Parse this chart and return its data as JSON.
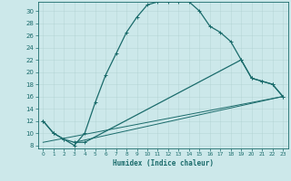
{
  "xlabel": "Humidex (Indice chaleur)",
  "bg_color": "#cce8ea",
  "grid_color": "#aacccc",
  "line_color": "#1a6b6b",
  "xlim": [
    -0.5,
    23.5
  ],
  "ylim": [
    7.5,
    31.5
  ],
  "xticks": [
    0,
    1,
    2,
    3,
    4,
    5,
    6,
    7,
    8,
    9,
    10,
    11,
    12,
    13,
    14,
    15,
    16,
    17,
    18,
    19,
    20,
    21,
    22,
    23
  ],
  "yticks": [
    8,
    10,
    12,
    14,
    16,
    18,
    20,
    22,
    24,
    26,
    28,
    30
  ],
  "series1_x": [
    0,
    1,
    2,
    3,
    4,
    5,
    6,
    7,
    8,
    9,
    10,
    11,
    12,
    13,
    14,
    15,
    16,
    17,
    18,
    19,
    20,
    21,
    22,
    23
  ],
  "series1_y": [
    12,
    10,
    9,
    8,
    10,
    15,
    19.5,
    23,
    26.5,
    29,
    31,
    31.5,
    31.5,
    31.5,
    31.5,
    30,
    27.5,
    26.5,
    25,
    22,
    19,
    18.5,
    18,
    16
  ],
  "series2_x": [
    0,
    1,
    2,
    3,
    4,
    19,
    20,
    21,
    22,
    23
  ],
  "series2_y": [
    12,
    10,
    9,
    8.5,
    8.5,
    22,
    19,
    18.5,
    18,
    16
  ],
  "series3_x": [
    0,
    23
  ],
  "series3_y": [
    8.5,
    16
  ],
  "series4_x": [
    3,
    23
  ],
  "series4_y": [
    8.5,
    16
  ]
}
